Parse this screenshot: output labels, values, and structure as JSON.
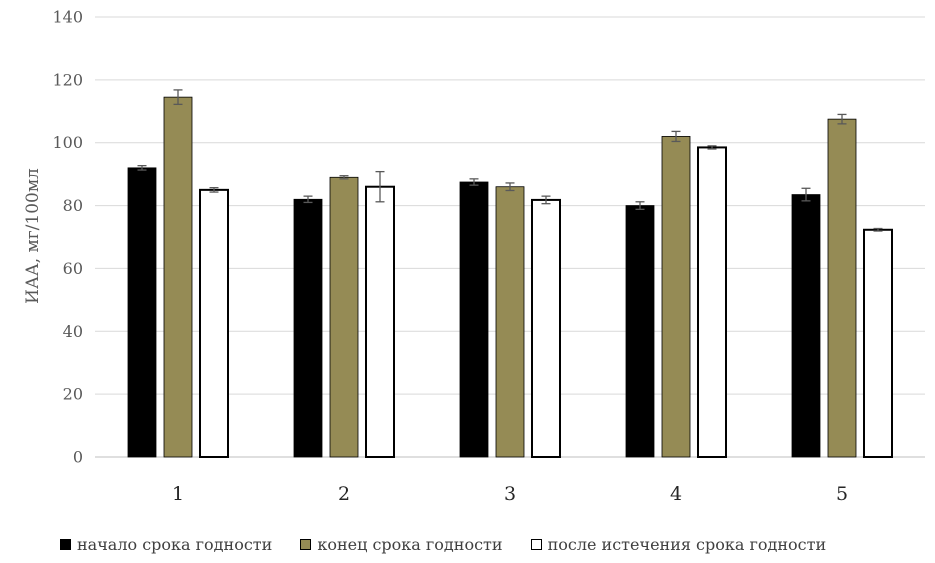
{
  "chart_data": {
    "type": "bar",
    "categories": [
      "1",
      "2",
      "3",
      "4",
      "5"
    ],
    "ylabel": "ИАА, мг/100мл",
    "xlabel": "",
    "ylim": [
      0,
      140
    ],
    "yticks": [
      0,
      20,
      40,
      60,
      80,
      100,
      120,
      140
    ],
    "grid": true,
    "legend_position": "bottom",
    "series": [
      {
        "name": "начало срока годности",
        "color": "#000000",
        "values": [
          92,
          82,
          87.5,
          80,
          83.5
        ],
        "errors": [
          0.7,
          1,
          1,
          1.2,
          2
        ]
      },
      {
        "name": "конец срока годности",
        "color": "#958b55",
        "values": [
          114.5,
          89,
          86,
          102,
          107.5
        ],
        "errors": [
          2.3,
          0.5,
          1.2,
          1.6,
          1.5
        ]
      },
      {
        "name": "после истечения срока годности",
        "color": "#ffffff",
        "values": [
          85,
          86,
          81.8,
          98.5,
          72.3
        ],
        "errors": [
          0.7,
          4.8,
          1.2,
          0.5,
          0.4
        ]
      }
    ]
  }
}
